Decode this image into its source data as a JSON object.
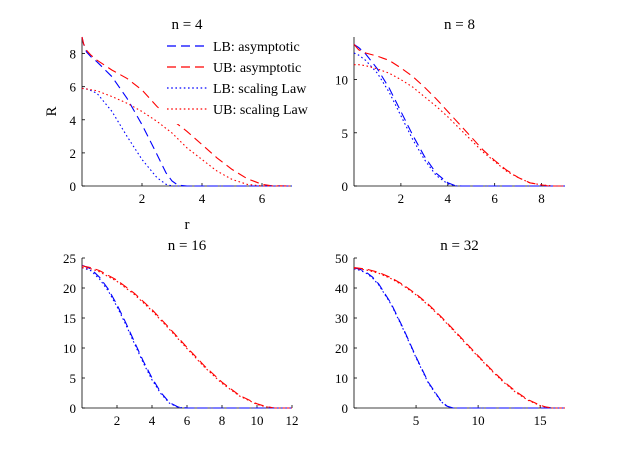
{
  "figure": {
    "legend": [
      {
        "label": "LB: asymptotic",
        "color": "#0000ff",
        "dash": "dashed"
      },
      {
        "label": "UB: asymptotic",
        "color": "#ff0000",
        "dash": "dashed"
      },
      {
        "label": "LB: scaling Law",
        "color": "#0000ff",
        "dash": "dotted"
      },
      {
        "label": "UB: scaling Law",
        "color": "#ff0000",
        "dash": "dotted"
      }
    ]
  },
  "chart_data": [
    {
      "type": "line",
      "title": "n = 4",
      "xlabel": "r",
      "ylabel": "R",
      "xlim": [
        0,
        7
      ],
      "ylim": [
        0,
        9
      ],
      "xticks": [
        2,
        4,
        6
      ],
      "yticks": [
        0,
        2,
        4,
        6,
        8
      ],
      "series": [
        {
          "name": "LB: asymptotic",
          "x": [
            0,
            0.05,
            0.15,
            0.3,
            0.5,
            1.0,
            1.5,
            2.0,
            2.5,
            2.8,
            3.0,
            3.2,
            3.5,
            7
          ],
          "values": [
            9.0,
            8.6,
            8.1,
            7.8,
            7.5,
            6.6,
            5.3,
            3.7,
            1.9,
            0.8,
            0.3,
            0.05,
            0,
            0
          ]
        },
        {
          "name": "UB: asymptotic",
          "x": [
            0,
            0.05,
            0.15,
            0.3,
            0.5,
            1.0,
            1.5,
            2.0,
            2.5,
            3.0,
            3.5,
            4.0,
            4.5,
            5.0,
            5.5,
            6.0,
            6.3,
            7
          ],
          "values": [
            9.0,
            8.6,
            8.2,
            7.9,
            7.6,
            7.0,
            6.5,
            5.8,
            4.8,
            4.0,
            3.3,
            2.5,
            1.7,
            1.0,
            0.45,
            0.1,
            0.02,
            0
          ]
        },
        {
          "name": "LB: scaling Law",
          "x": [
            0,
            0.2,
            0.5,
            1.0,
            1.5,
            2.0,
            2.5,
            2.8,
            3.0,
            7
          ],
          "values": [
            5.9,
            5.85,
            5.6,
            4.5,
            3.0,
            1.6,
            0.5,
            0.1,
            0,
            0
          ]
        },
        {
          "name": "UB: scaling Law",
          "x": [
            0,
            0.2,
            0.5,
            1.0,
            1.5,
            2.0,
            2.5,
            3.0,
            3.5,
            4.0,
            4.5,
            5.0,
            5.5,
            6.0,
            7
          ],
          "values": [
            5.9,
            5.85,
            5.75,
            5.4,
            5.0,
            4.5,
            3.9,
            3.2,
            2.3,
            1.6,
            0.9,
            0.4,
            0.1,
            0,
            0
          ]
        }
      ]
    },
    {
      "type": "line",
      "title": "n = 8",
      "xlim": [
        0,
        9
      ],
      "ylim": [
        0,
        14
      ],
      "xticks": [
        2,
        4,
        6,
        8
      ],
      "yticks": [
        0,
        5,
        10
      ],
      "series": [
        {
          "name": "LB: asymptotic",
          "x": [
            0,
            0.2,
            0.5,
            1.0,
            1.5,
            2.0,
            2.5,
            3.0,
            3.5,
            4.0,
            4.3,
            4.6,
            9
          ],
          "values": [
            13.3,
            13.0,
            12.4,
            11.0,
            9.2,
            7.0,
            4.8,
            2.8,
            1.2,
            0.3,
            0.05,
            0,
            0
          ]
        },
        {
          "name": "UB: asymptotic",
          "x": [
            0,
            0.2,
            0.5,
            1.0,
            1.5,
            2.0,
            2.5,
            3.0,
            3.5,
            4.0,
            4.5,
            5.0,
            5.5,
            6.0,
            6.5,
            7.0,
            7.5,
            8.0,
            8.3,
            9
          ],
          "values": [
            13.3,
            12.8,
            12.5,
            12.2,
            11.8,
            11.1,
            10.3,
            9.3,
            8.2,
            7.0,
            5.8,
            4.6,
            3.4,
            2.4,
            1.5,
            0.8,
            0.3,
            0.1,
            0,
            0
          ]
        },
        {
          "name": "LB: scaling Law",
          "x": [
            0,
            0.2,
            0.5,
            1.0,
            1.5,
            2.0,
            2.5,
            3.0,
            3.5,
            4.0,
            4.4,
            9
          ],
          "values": [
            12.5,
            12.3,
            11.8,
            10.6,
            8.8,
            6.6,
            4.4,
            2.5,
            1.0,
            0.2,
            0,
            0
          ]
        },
        {
          "name": "UB: scaling Law",
          "x": [
            0,
            0.2,
            0.5,
            1.0,
            1.5,
            2.0,
            2.5,
            3.0,
            3.5,
            4.0,
            4.5,
            5.0,
            5.5,
            6.0,
            6.5,
            7.0,
            7.5,
            8.0,
            8.5,
            9
          ],
          "values": [
            11.4,
            11.4,
            11.3,
            11.0,
            10.6,
            10.0,
            9.3,
            8.4,
            7.5,
            6.5,
            5.4,
            4.3,
            3.2,
            2.3,
            1.4,
            0.8,
            0.3,
            0.1,
            0,
            0
          ]
        }
      ]
    },
    {
      "type": "line",
      "title": "n = 16",
      "xlim": [
        0,
        12
      ],
      "ylim": [
        0,
        25
      ],
      "xticks": [
        2,
        4,
        6,
        8,
        10,
        12
      ],
      "yticks": [
        0,
        5,
        10,
        15,
        20,
        25
      ],
      "series": [
        {
          "name": "LB: asymptotic",
          "x": [
            0,
            0.5,
            1.0,
            1.5,
            2.0,
            2.5,
            3.0,
            3.5,
            4.0,
            4.5,
            5.0,
            5.5,
            6.0,
            12
          ],
          "values": [
            23.8,
            23.2,
            21.8,
            19.8,
            17.2,
            14.2,
            11.0,
            7.8,
            5.0,
            2.6,
            0.9,
            0.15,
            0,
            0
          ]
        },
        {
          "name": "UB: asymptotic",
          "x": [
            0,
            0.5,
            1.0,
            2.0,
            3.0,
            4.0,
            5.0,
            6.0,
            7.0,
            8.0,
            9.0,
            10.0,
            10.5,
            11.0,
            12
          ],
          "values": [
            23.7,
            23.4,
            22.9,
            21.3,
            19.1,
            16.4,
            13.3,
            10.1,
            7.0,
            4.3,
            2.1,
            0.7,
            0.25,
            0,
            0
          ]
        },
        {
          "name": "LB: scaling Law",
          "x": [
            0,
            0.5,
            1.0,
            1.5,
            2.0,
            2.5,
            3.0,
            3.5,
            4.0,
            4.5,
            5.0,
            5.5,
            6.0,
            12
          ],
          "values": [
            23.4,
            22.9,
            21.5,
            19.5,
            16.9,
            13.9,
            10.7,
            7.5,
            4.7,
            2.4,
            0.8,
            0.1,
            0,
            0
          ]
        },
        {
          "name": "UB: scaling Law",
          "x": [
            0,
            0.5,
            1.0,
            2.0,
            3.0,
            4.0,
            5.0,
            6.0,
            7.0,
            8.0,
            9.0,
            10.0,
            10.5,
            11.0,
            12
          ],
          "values": [
            23.4,
            23.2,
            22.7,
            21.1,
            18.9,
            16.2,
            13.1,
            9.9,
            6.8,
            4.1,
            2.0,
            0.6,
            0.2,
            0,
            0
          ]
        }
      ]
    },
    {
      "type": "line",
      "title": "n = 32",
      "xlim": [
        0,
        17
      ],
      "ylim": [
        0,
        50
      ],
      "xticks": [
        5,
        10,
        15
      ],
      "yticks": [
        0,
        10,
        20,
        30,
        40,
        50
      ],
      "series": [
        {
          "name": "LB: asymptotic",
          "x": [
            0,
            0.5,
            1.0,
            1.5,
            2.0,
            3.0,
            4.0,
            5.0,
            6.0,
            7.0,
            7.5,
            8.0,
            17
          ],
          "values": [
            46.7,
            46.2,
            45.2,
            43.6,
            41.3,
            34.8,
            26.3,
            17.0,
            8.5,
            2.4,
            0.6,
            0,
            0
          ]
        },
        {
          "name": "UB: asymptotic",
          "x": [
            0,
            1.0,
            2.0,
            3.0,
            4.0,
            5.0,
            6.0,
            7.0,
            8.0,
            9.0,
            10.0,
            11.0,
            12.0,
            13.0,
            14.0,
            15.0,
            15.5,
            16.0,
            17
          ],
          "values": [
            46.8,
            46.3,
            45.2,
            43.4,
            41.0,
            38.0,
            34.5,
            30.5,
            26.2,
            21.8,
            17.4,
            13.1,
            9.1,
            5.6,
            2.8,
            0.9,
            0.3,
            0,
            0
          ]
        },
        {
          "name": "LB: scaling Law",
          "x": [
            0,
            0.5,
            1.0,
            1.5,
            2.0,
            3.0,
            4.0,
            5.0,
            6.0,
            7.0,
            7.5,
            8.0,
            17
          ],
          "values": [
            46.4,
            45.9,
            44.9,
            43.3,
            41.0,
            34.5,
            26.0,
            16.7,
            8.2,
            2.2,
            0.5,
            0,
            0
          ]
        },
        {
          "name": "UB: scaling Law",
          "x": [
            0,
            1.0,
            2.0,
            3.0,
            4.0,
            5.0,
            6.0,
            7.0,
            8.0,
            9.0,
            10.0,
            11.0,
            12.0,
            13.0,
            14.0,
            15.0,
            15.5,
            16.0,
            17
          ],
          "values": [
            46.5,
            46.0,
            44.9,
            43.1,
            40.7,
            37.7,
            34.2,
            30.2,
            25.9,
            21.5,
            17.1,
            12.8,
            8.8,
            5.3,
            2.6,
            0.8,
            0.2,
            0,
            0
          ]
        }
      ]
    }
  ]
}
